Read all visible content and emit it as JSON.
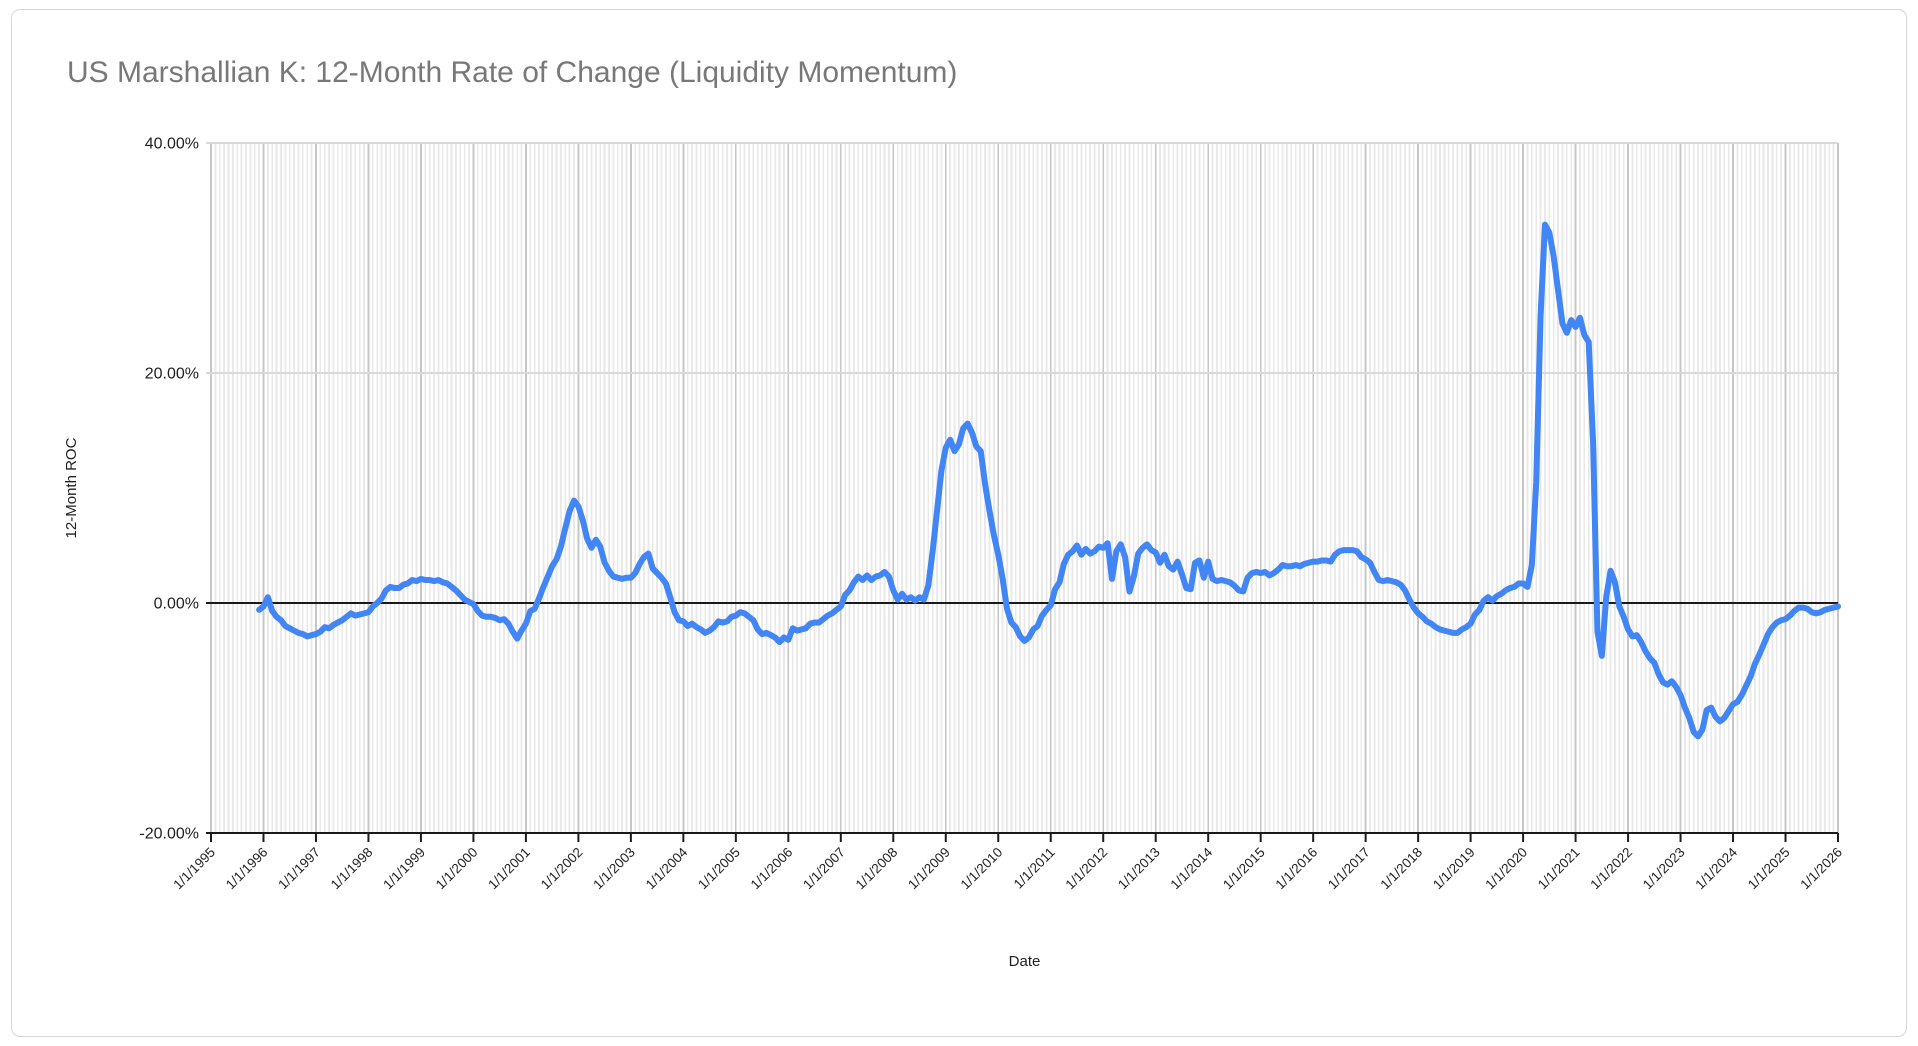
{
  "window": {
    "background": "#ffffff",
    "card_border_color": "#d7d7d7"
  },
  "chart_data": {
    "type": "line",
    "title": "US Marshallian K: 12-Month Rate of Change (Liquidity Momentum)",
    "title_color": "#787878",
    "xlabel": "Date",
    "ylabel": "12-Month ROC",
    "legend": "none",
    "grid": {
      "x_minor": "monthly",
      "x_major": "yearly",
      "y_gridlines": [
        40,
        20
      ],
      "zero_line": true
    },
    "ylim": [
      -20,
      40
    ],
    "y_tick_values": [
      40,
      20,
      0,
      -20
    ],
    "y_tick_labels": [
      "40.00%",
      "20.00%",
      "0.00%",
      "-20.00%"
    ],
    "x_tick_years": [
      1995,
      1996,
      1997,
      1998,
      1999,
      2000,
      2001,
      2002,
      2003,
      2004,
      2005,
      2006,
      2007,
      2008,
      2009,
      2010,
      2011,
      2012,
      2013,
      2014,
      2015,
      2016,
      2017,
      2018,
      2019,
      2020,
      2021,
      2022,
      2023,
      2024,
      2025,
      2026
    ],
    "x_tick_labels": [
      "1/1/1995",
      "1/1/1996",
      "1/1/1997",
      "1/1/1998",
      "1/1/1999",
      "1/1/2000",
      "1/1/2001",
      "1/1/2002",
      "1/1/2003",
      "1/1/2004",
      "1/1/2005",
      "1/1/2006",
      "1/1/2007",
      "1/1/2008",
      "1/1/2009",
      "1/1/2010",
      "1/1/2011",
      "1/1/2012",
      "1/1/2013",
      "1/1/2014",
      "1/1/2015",
      "1/1/2016",
      "1/1/2017",
      "1/1/2018",
      "1/1/2019",
      "1/1/2020",
      "1/1/2021",
      "1/1/2022",
      "1/1/2023",
      "1/1/2024",
      "1/1/2025",
      "1/1/2026"
    ],
    "series": [
      {
        "name": "12-Month ROC",
        "color": "#4285f4",
        "line_width": 6,
        "frequency": "monthly",
        "start_month": "12/1/1995",
        "values_pct": [
          -0.6,
          -0.3,
          0.5,
          -0.7,
          -1.2,
          -1.5,
          -2.0,
          -2.2,
          -2.4,
          -2.6,
          -2.7,
          -2.9,
          -2.8,
          -2.7,
          -2.5,
          -2.1,
          -2.2,
          -1.9,
          -1.7,
          -1.5,
          -1.2,
          -0.9,
          -1.1,
          -1.0,
          -0.9,
          -0.8,
          -0.3,
          0.0,
          0.4,
          1.1,
          1.4,
          1.3,
          1.3,
          1.6,
          1.7,
          2.0,
          1.9,
          2.1,
          2.0,
          2.0,
          1.9,
          2.0,
          1.8,
          1.7,
          1.4,
          1.1,
          0.7,
          0.3,
          0.1,
          -0.1,
          -0.7,
          -1.1,
          -1.2,
          -1.2,
          -1.3,
          -1.5,
          -1.4,
          -1.8,
          -2.5,
          -3.1,
          -2.4,
          -1.8,
          -0.7,
          -0.5,
          0.4,
          1.4,
          2.3,
          3.2,
          3.8,
          4.9,
          6.5,
          8.0,
          8.9,
          8.4,
          7.2,
          5.6,
          4.8,
          5.5,
          4.9,
          3.5,
          2.8,
          2.3,
          2.2,
          2.1,
          2.2,
          2.2,
          2.6,
          3.4,
          4.0,
          4.3,
          3.0,
          2.6,
          2.2,
          1.7,
          0.5,
          -0.8,
          -1.5,
          -1.6,
          -2.0,
          -1.8,
          -2.1,
          -2.3,
          -2.6,
          -2.4,
          -2.1,
          -1.6,
          -1.7,
          -1.6,
          -1.2,
          -1.1,
          -0.8,
          -0.9,
          -1.2,
          -1.5,
          -2.3,
          -2.7,
          -2.6,
          -2.8,
          -3.0,
          -3.4,
          -3.0,
          -3.2,
          -2.2,
          -2.4,
          -2.3,
          -2.2,
          -1.8,
          -1.7,
          -1.7,
          -1.4,
          -1.1,
          -0.9,
          -0.6,
          -0.3,
          0.7,
          1.1,
          1.8,
          2.3,
          2.0,
          2.4,
          2.0,
          2.3,
          2.4,
          2.7,
          2.3,
          1.1,
          0.3,
          0.8,
          0.3,
          0.5,
          0.2,
          0.5,
          0.3,
          1.5,
          4.5,
          8.0,
          11.5,
          13.5,
          14.2,
          13.2,
          13.8,
          15.2,
          15.6,
          14.8,
          13.6,
          13.2,
          10.3,
          8.0,
          5.9,
          4.2,
          2.1,
          -0.5,
          -1.7,
          -2.1,
          -2.9,
          -3.3,
          -3.0,
          -2.3,
          -2.0,
          -1.1,
          -0.6,
          -0.2,
          1.2,
          1.8,
          3.4,
          4.2,
          4.5,
          5.0,
          4.2,
          4.7,
          4.3,
          4.5,
          4.9,
          4.8,
          5.2,
          2.1,
          4.5,
          5.1,
          4.0,
          1.0,
          2.3,
          4.3,
          4.8,
          5.1,
          4.6,
          4.4,
          3.5,
          4.2,
          3.2,
          2.9,
          3.6,
          2.5,
          1.3,
          1.2,
          3.5,
          3.7,
          2.2,
          3.6,
          2.1,
          1.9,
          2.0,
          1.9,
          1.8,
          1.5,
          1.1,
          1.0,
          2.2,
          2.6,
          2.7,
          2.6,
          2.7,
          2.4,
          2.6,
          2.9,
          3.3,
          3.2,
          3.2,
          3.3,
          3.2,
          3.4,
          3.5,
          3.6,
          3.6,
          3.7,
          3.7,
          3.6,
          4.2,
          4.5,
          4.6,
          4.6,
          4.6,
          4.5,
          4.0,
          3.8,
          3.5,
          2.7,
          2.0,
          1.9,
          2.0,
          1.9,
          1.8,
          1.6,
          1.1,
          0.3,
          -0.4,
          -0.9,
          -1.2,
          -1.6,
          -1.8,
          -2.1,
          -2.3,
          -2.4,
          -2.5,
          -2.6,
          -2.6,
          -2.3,
          -2.1,
          -1.8,
          -1.0,
          -0.6,
          0.2,
          0.5,
          0.2,
          0.6,
          0.8,
          1.1,
          1.3,
          1.4,
          1.7,
          1.7,
          1.4,
          3.3,
          10.5,
          25.0,
          32.9,
          32.2,
          30.1,
          27.2,
          24.3,
          23.5,
          24.6,
          24.0,
          24.8,
          23.3,
          22.7,
          14.0,
          -2.5,
          -4.6,
          0.5,
          2.8,
          1.8,
          -0.3,
          -1.2,
          -2.3,
          -2.9,
          -2.8,
          -3.4,
          -4.2,
          -4.8,
          -5.2,
          -6.2,
          -6.9,
          -7.1,
          -6.8,
          -7.3,
          -8.0,
          -9.1,
          -10.0,
          -11.2,
          -11.6,
          -11.0,
          -9.3,
          -9.1,
          -9.9,
          -10.3,
          -10.0,
          -9.4,
          -8.8,
          -8.6,
          -8.0,
          -7.2,
          -6.4,
          -5.3,
          -4.5,
          -3.6,
          -2.7,
          -2.1,
          -1.7,
          -1.5,
          -1.4,
          -1.1,
          -0.7,
          -0.4,
          -0.4,
          -0.5,
          -0.8,
          -0.9,
          -0.8,
          -0.6,
          -0.5,
          -0.4,
          -0.3
        ]
      }
    ]
  }
}
